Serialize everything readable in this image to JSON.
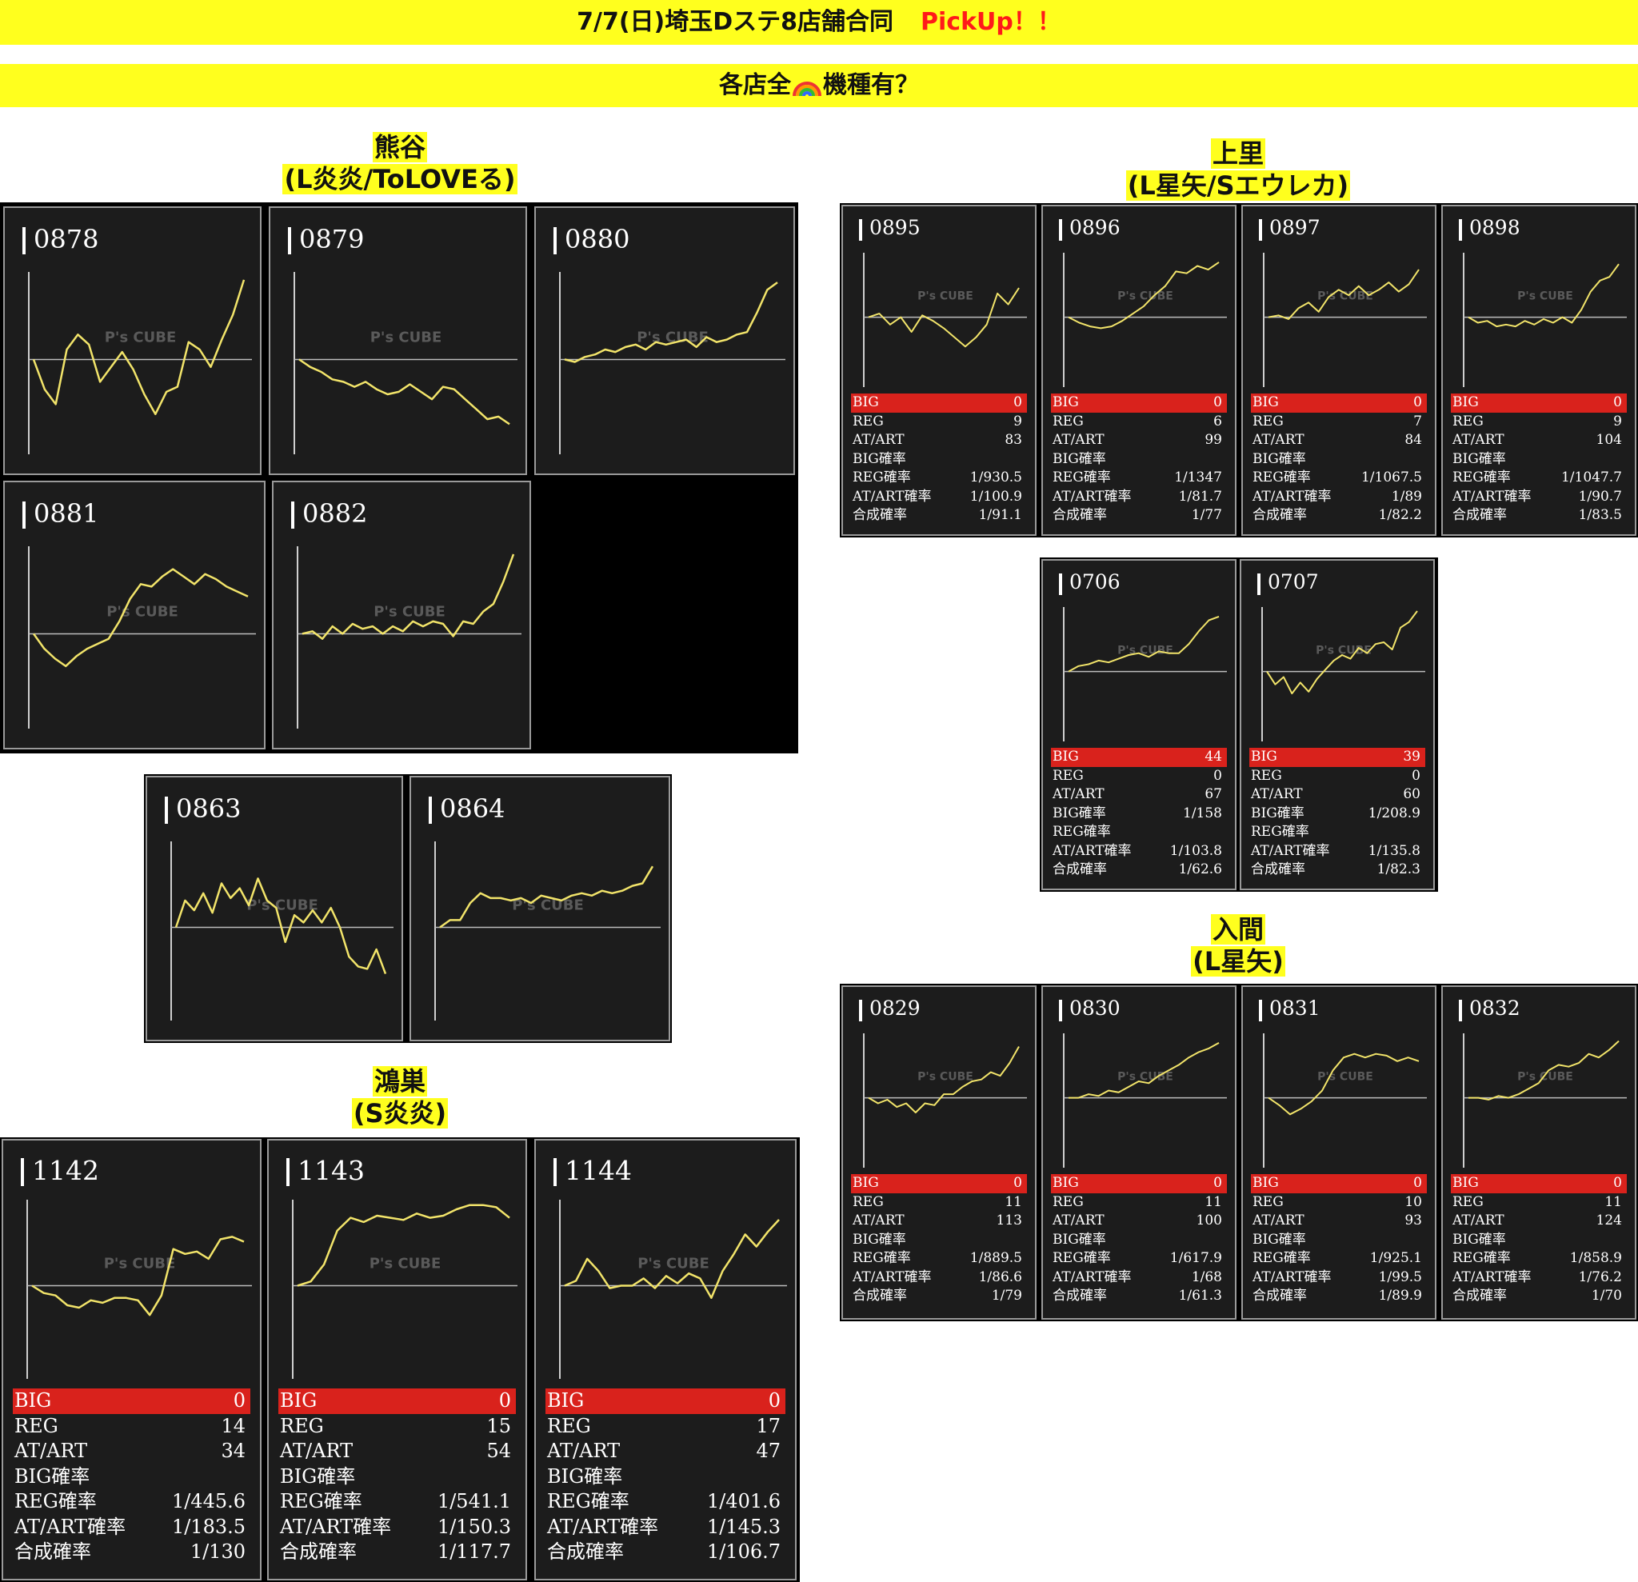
{
  "header": {
    "title": "7/7(日)埼玉Dステ8店舗合同",
    "pickup": "PickUp！！",
    "subtitle_pre": "各店全",
    "subtitle_icon": "rainbow-icon",
    "subtitle_post": "機種有？"
  },
  "watermark": "P's CUBE",
  "stat_labels": [
    "BIG",
    "REG",
    "AT/ART",
    "BIG確率",
    "REG確率",
    "AT/ART確率",
    "合成確率"
  ],
  "sections": [
    {
      "id": "kumagaya",
      "name": "熊谷",
      "models": "(L炎炎/ToLOVEる)",
      "machines": [
        {
          "num": "0878",
          "series": [
            0,
            -1.2,
            -1.8,
            0.4,
            1,
            0.6,
            -0.9,
            -0.3,
            0.3,
            -0.4,
            -1.4,
            -2.2,
            -1.3,
            -1.1,
            0.7,
            0.4,
            -0.3,
            0.8,
            1.8,
            3.2
          ]
        },
        {
          "num": "0879",
          "series": [
            0,
            -0.3,
            -0.5,
            -0.8,
            -0.9,
            -1.1,
            -0.9,
            -1.2,
            -1.4,
            -1.3,
            -1.0,
            -1.3,
            -1.6,
            -1.1,
            -1.2,
            -1.6,
            -2.0,
            -2.4,
            -2.3,
            -2.6
          ]
        },
        {
          "num": "0880",
          "series": [
            0,
            -0.1,
            0.1,
            0.2,
            0.4,
            0.3,
            0.5,
            0.6,
            0.4,
            0.7,
            0.6,
            0.7,
            0.8,
            0.5,
            0.9,
            0.7,
            0.8,
            1.0,
            1.1,
            1.9,
            2.8,
            3.1
          ]
        },
        {
          "num": "0881",
          "series": [
            0,
            -0.6,
            -1.0,
            -1.3,
            -0.9,
            -0.6,
            -0.4,
            -0.2,
            0.5,
            1.4,
            2.0,
            1.9,
            2.3,
            2.6,
            2.3,
            2.0,
            2.4,
            2.2,
            1.9,
            1.7,
            1.5
          ]
        },
        {
          "num": "0882",
          "series": [
            0,
            0.1,
            -0.2,
            0.3,
            0.0,
            0.4,
            0.2,
            0.3,
            0.0,
            0.3,
            0.1,
            0.5,
            0.3,
            0.5,
            0.4,
            -0.1,
            0.5,
            0.4,
            0.9,
            1.2,
            2.1,
            3.2
          ]
        }
      ]
    },
    {
      "id": "kumagaya-2",
      "name": "",
      "models": "",
      "machines": [
        {
          "num": "0863",
          "series": [
            0,
            1.1,
            0.7,
            1.4,
            0.6,
            1.8,
            1.2,
            1.6,
            0.9,
            2.0,
            1.1,
            0.8,
            -0.6,
            0.5,
            0.2,
            0.7,
            0.2,
            0.8,
            0.0,
            -1.2,
            -1.6,
            -1.7,
            -0.9,
            -1.9
          ]
        },
        {
          "num": "0864",
          "series": [
            0,
            0.3,
            0.3,
            1.0,
            1.4,
            1.2,
            1.2,
            1.1,
            1.2,
            1.0,
            1.3,
            1.2,
            1.1,
            1.3,
            1.4,
            1.3,
            1.5,
            1.4,
            1.5,
            1.7,
            1.8,
            2.5
          ]
        }
      ]
    },
    {
      "id": "kamisato",
      "name": "上里",
      "models": "(L星矢/Sエウレカ)",
      "machines": [
        {
          "num": "0895",
          "series": [
            0,
            0.2,
            -0.4,
            0.0,
            -0.8,
            0.1,
            -0.2,
            -0.6,
            -1.1,
            -1.6,
            -1.1,
            -0.4,
            1.3,
            0.7,
            1.6
          ],
          "big": "0",
          "reg": "9",
          "at": "83",
          "big_p": "",
          "reg_p": "1/930.5",
          "at_p": "1/100.9",
          "total_p": "1/91.1"
        },
        {
          "num": "0896",
          "series": [
            0,
            -0.3,
            -0.5,
            -0.6,
            -0.5,
            -0.2,
            0.2,
            0.6,
            1.2,
            1.7,
            2.5,
            2.4,
            2.8,
            2.6,
            3.0
          ],
          "big": "0",
          "reg": "6",
          "at": "99",
          "big_p": "",
          "reg_p": "1/1347",
          "at_p": "1/81.7",
          "total_p": "1/77"
        },
        {
          "num": "0897",
          "series": [
            0,
            0.1,
            -0.1,
            0.5,
            0.8,
            0.3,
            1.1,
            1.5,
            1.2,
            1.7,
            1.2,
            1.5,
            1.9,
            1.4,
            1.8,
            2.6
          ],
          "big": "0",
          "reg": "7",
          "at": "84",
          "big_p": "",
          "reg_p": "1/1067.5",
          "at_p": "1/89",
          "total_p": "1/82.2"
        },
        {
          "num": "0898",
          "series": [
            0,
            -0.3,
            -0.2,
            -0.5,
            -0.4,
            -0.5,
            -0.2,
            -0.4,
            -0.1,
            -0.3,
            0.0,
            -0.3,
            0.4,
            1.4,
            2.0,
            2.2,
            2.9
          ],
          "big": "0",
          "reg": "9",
          "at": "104",
          "big_p": "",
          "reg_p": "1/1047.7",
          "at_p": "1/90.7",
          "total_p": "1/83.5"
        },
        {
          "num": "0706",
          "series": [
            0,
            0.3,
            0.4,
            0.6,
            0.5,
            0.7,
            0.9,
            1.0,
            0.8,
            1.1,
            1.0,
            1.0,
            1.5,
            2.2,
            2.8,
            3.0
          ],
          "big": "44",
          "reg": "0",
          "at": "67",
          "big_p": "1/158",
          "reg_p": "",
          "at_p": "1/103.8",
          "total_p": "1/62.6"
        },
        {
          "num": "0707",
          "series": [
            0,
            -0.7,
            -0.3,
            -1.2,
            -0.6,
            -1.1,
            -0.4,
            0.1,
            0.6,
            0.9,
            0.7,
            1.3,
            1.0,
            1.5,
            1.6,
            1.2,
            2.4,
            2.7,
            3.3
          ],
          "big": "39",
          "reg": "0",
          "at": "60",
          "big_p": "1/208.9",
          "reg_p": "",
          "at_p": "1/135.8",
          "total_p": "1/82.3"
        }
      ]
    },
    {
      "id": "iruma",
      "name": "入間",
      "models": "(L星矢)",
      "machines": [
        {
          "num": "0829",
          "series": [
            0,
            -0.3,
            -0.1,
            -0.5,
            -0.3,
            -0.8,
            -0.3,
            -0.4,
            0.2,
            0.2,
            0.6,
            0.9,
            1.0,
            1.4,
            1.2,
            1.9,
            2.8
          ],
          "big": "0",
          "reg": "11",
          "at": "113",
          "big_p": "",
          "reg_p": "1/889.5",
          "at_p": "1/86.6",
          "total_p": "1/79"
        },
        {
          "num": "0830",
          "series": [
            0,
            0.0,
            0.2,
            0.1,
            0.4,
            0.3,
            0.6,
            0.9,
            0.8,
            1.2,
            1.5,
            1.8,
            2.2,
            2.5,
            2.7,
            3.0
          ],
          "big": "0",
          "reg": "11",
          "at": "100",
          "big_p": "",
          "reg_p": "1/617.9",
          "at_p": "1/68",
          "total_p": "1/61.3"
        },
        {
          "num": "0831",
          "series": [
            0,
            -0.4,
            -0.9,
            -0.6,
            -0.2,
            0.4,
            1.5,
            2.2,
            2.4,
            2.2,
            2.4,
            2.3,
            2.0,
            2.2,
            2.0
          ],
          "big": "0",
          "reg": "10",
          "at": "93",
          "big_p": "",
          "reg_p": "1/925.1",
          "at_p": "1/99.5",
          "total_p": "1/89.9"
        },
        {
          "num": "0832",
          "series": [
            0,
            0.0,
            -0.1,
            0.1,
            0.0,
            0.2,
            0.5,
            0.8,
            1.5,
            1.8,
            1.7,
            1.9,
            2.4,
            2.2,
            2.6,
            3.1
          ],
          "big": "0",
          "reg": "11",
          "at": "124",
          "big_p": "",
          "reg_p": "1/858.9",
          "at_p": "1/76.2",
          "total_p": "1/70"
        }
      ]
    },
    {
      "id": "konosu",
      "name": "鴻巣",
      "models": "(S炎炎)",
      "machines": [
        {
          "num": "1142",
          "series": [
            0,
            -0.3,
            -0.4,
            -0.8,
            -0.9,
            -0.6,
            -0.7,
            -0.5,
            -0.5,
            -0.6,
            -1.2,
            -0.4,
            1.5,
            1.3,
            1.4,
            1.1,
            1.9,
            2.0,
            1.8
          ],
          "big": "0",
          "reg": "14",
          "at": "34",
          "big_p": "",
          "reg_p": "1/445.6",
          "at_p": "1/183.5",
          "total_p": "1/130"
        },
        {
          "num": "1143",
          "series": [
            0,
            0.2,
            1.0,
            2.6,
            3.2,
            3.0,
            3.3,
            3.2,
            3.1,
            3.4,
            3.2,
            3.3,
            3.6,
            3.8,
            3.8,
            3.7,
            3.2
          ],
          "big": "0",
          "reg": "15",
          "at": "54",
          "big_p": "",
          "reg_p": "1/541.1",
          "at_p": "1/150.3",
          "total_p": "1/117.7"
        },
        {
          "num": "1144",
          "series": [
            0,
            0.2,
            1.1,
            0.6,
            -0.1,
            0.0,
            0.0,
            0.3,
            -0.1,
            0.4,
            0.1,
            0.5,
            0.3,
            -0.5,
            0.6,
            1.3,
            2.1,
            1.6,
            2.2,
            2.7
          ],
          "big": "0",
          "reg": "17",
          "at": "47",
          "big_p": "",
          "reg_p": "1/401.6",
          "at_p": "1/145.3",
          "total_p": "1/106.7"
        }
      ]
    }
  ]
}
